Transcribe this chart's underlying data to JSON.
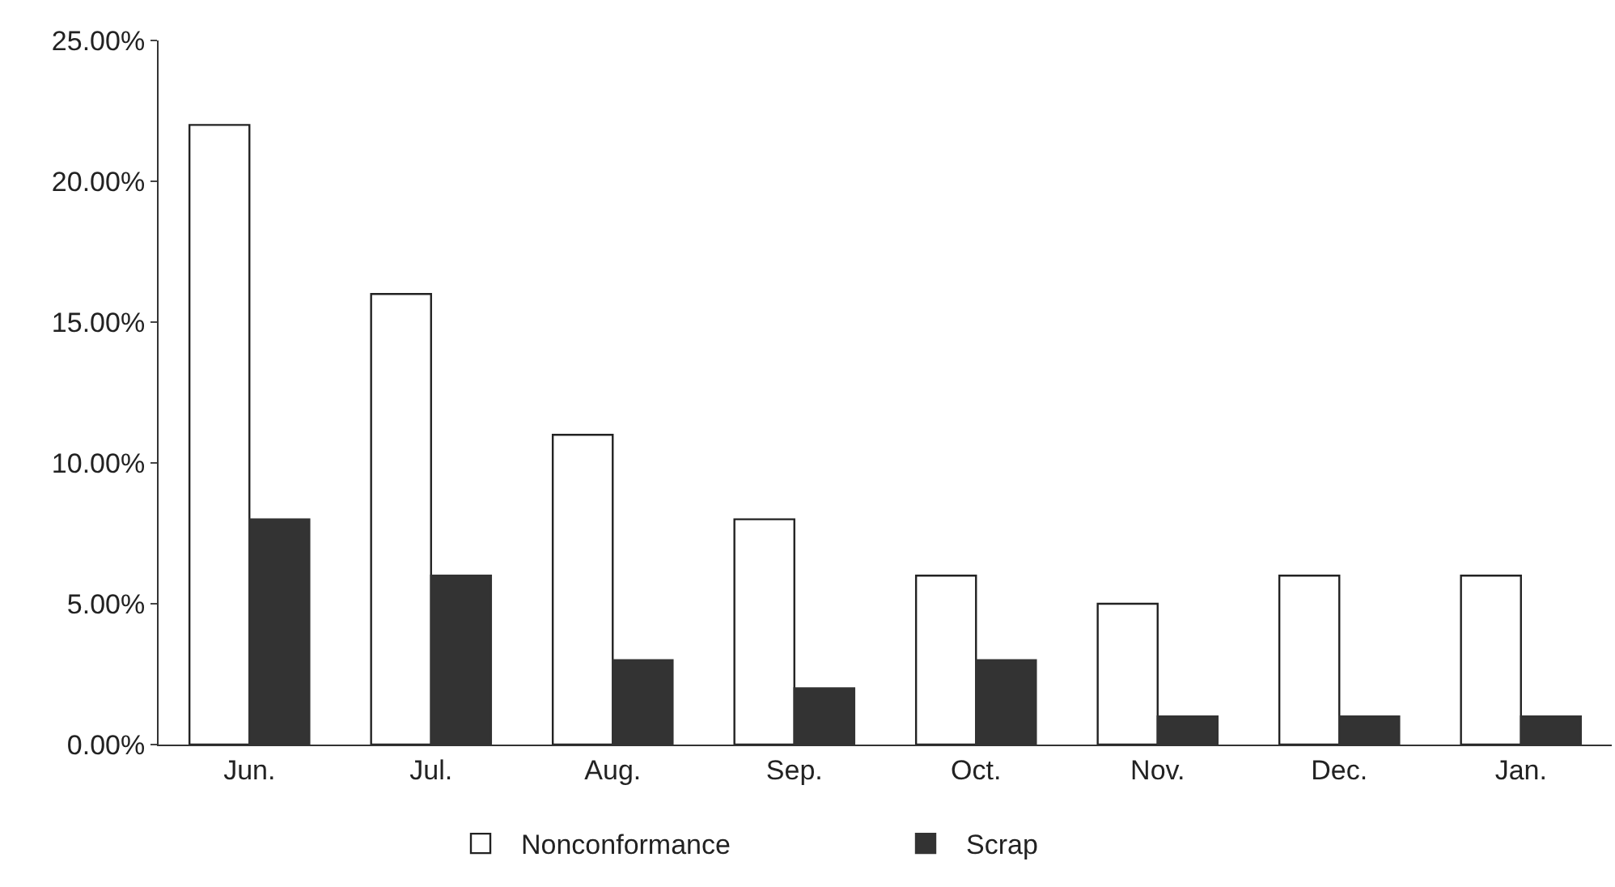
{
  "chart_data": {
    "type": "bar",
    "categories": [
      "Jun.",
      "Jul.",
      "Aug.",
      "Sep.",
      "Oct.",
      "Nov.",
      "Dec.",
      "Jan."
    ],
    "series": [
      {
        "name": "Nonconformance",
        "color": "#ffffff",
        "values": [
          22,
          16,
          11,
          8,
          6,
          5,
          6,
          6
        ]
      },
      {
        "name": "Scrap",
        "color": "#333333",
        "values": [
          8,
          6,
          3,
          2,
          3,
          1,
          1,
          1
        ]
      }
    ],
    "ylim": [
      0,
      25
    ],
    "yticks": [
      {
        "value": 0,
        "label": "0.00%"
      },
      {
        "value": 5,
        "label": "5.00%"
      },
      {
        "value": 10,
        "label": "10.00%"
      },
      {
        "value": 15,
        "label": "15.00%"
      },
      {
        "value": 20,
        "label": "20.00%"
      },
      {
        "value": 25,
        "label": "25.00%"
      }
    ],
    "grid": false,
    "legend": "bottom"
  }
}
